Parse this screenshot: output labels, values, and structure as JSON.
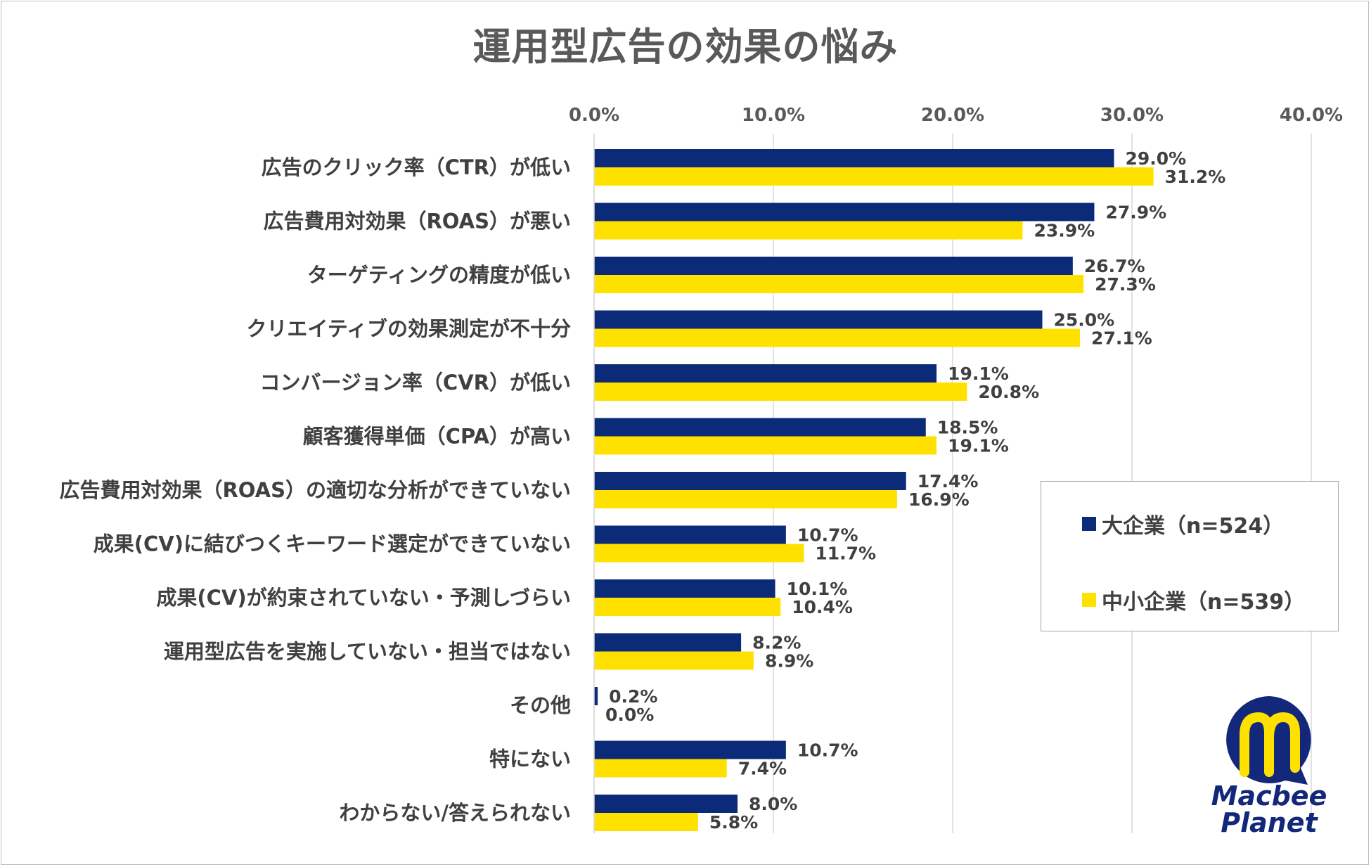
{
  "chart_data": {
    "type": "bar",
    "orientation": "horizontal",
    "title": "運用型広告の効果の悩み",
    "categories": [
      "広告のクリック率（CTR）が低い",
      "広告費用対効果（ROAS）が悪い",
      "ターゲティングの精度が低い",
      "クリエイティブの効果測定が不十分",
      "コンバージョン率（CVR）が低い",
      "顧客獲得単価（CPA）が高い",
      "広告費用対効果（ROAS）の適切な分析ができていない",
      "成果(CV)に結びつくキーワード選定ができていない",
      "成果(CV)が約束されていない・予測しづらい",
      "運用型広告を実施していない・担当ではない",
      "その他",
      "特にない",
      "わからない/答えられない"
    ],
    "series": [
      {
        "name": "大企業（n=524）",
        "color": "#0b2a78",
        "values": [
          29.0,
          27.9,
          26.7,
          25.0,
          19.1,
          18.5,
          17.4,
          10.7,
          10.1,
          8.2,
          0.2,
          10.7,
          8.0
        ],
        "labels": [
          "29.0%",
          "27.9%",
          "26.7%",
          "25.0%",
          "19.1%",
          "18.5%",
          "17.4%",
          "10.7%",
          "10.1%",
          "8.2%",
          "0.2%",
          "10.7%",
          "8.0%"
        ]
      },
      {
        "name": "中小企業（n=539）",
        "color": "#ffe100",
        "values": [
          31.2,
          23.9,
          27.3,
          27.1,
          20.8,
          19.1,
          16.9,
          11.7,
          10.4,
          8.9,
          0.0,
          7.4,
          5.8
        ],
        "labels": [
          "31.2%",
          "23.9%",
          "27.3%",
          "27.1%",
          "20.8%",
          "19.1%",
          "16.9%",
          "11.7%",
          "10.4%",
          "8.9%",
          "0.0%",
          "7.4%",
          "5.8%"
        ]
      }
    ],
    "xlim": [
      0,
      40
    ],
    "xticks": [
      0,
      10,
      20,
      30,
      40
    ],
    "xtick_labels": [
      "0.0%",
      "10.0%",
      "20.0%",
      "30.0%",
      "40.0%"
    ],
    "x_axis_position": "top",
    "grid": true,
    "legend_position": "right"
  },
  "logo": {
    "line1": "Macbee",
    "line2": "Planet",
    "primary_color": "#13287a",
    "accent_color": "#ffe100"
  }
}
